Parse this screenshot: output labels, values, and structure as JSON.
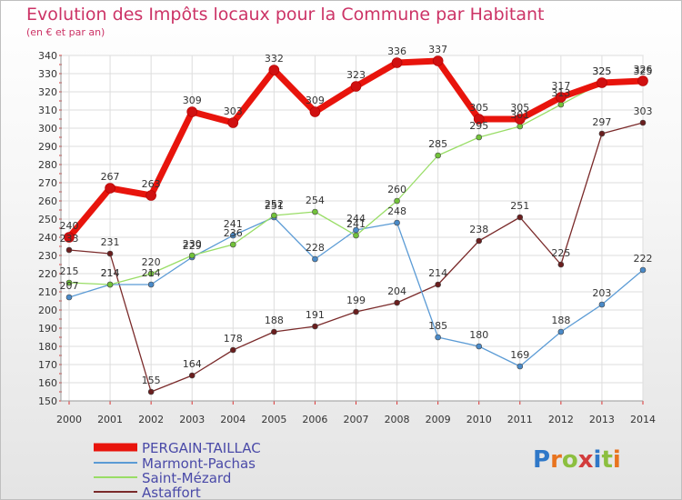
{
  "header": {
    "title": "Evolution des Impôts locaux pour la Commune par Habitant",
    "subtitle": "(en € et par an)"
  },
  "logo": {
    "text": "Proxiti",
    "colors": [
      "#2f78c8",
      "#e8731e",
      "#8cbf3f",
      "#d23c3c",
      "#2f78c8",
      "#8cbf3f",
      "#e8731e"
    ]
  },
  "chart_data": {
    "type": "line",
    "x": [
      2000,
      2001,
      2002,
      2003,
      2004,
      2005,
      2006,
      2007,
      2008,
      2009,
      2010,
      2011,
      2012,
      2013,
      2014
    ],
    "ylim": [
      150,
      340
    ],
    "yticks": [
      150,
      160,
      170,
      180,
      190,
      200,
      210,
      220,
      230,
      240,
      250,
      260,
      270,
      280,
      290,
      300,
      310,
      320,
      330,
      340
    ],
    "grid": true,
    "legend_position": "bottom-left",
    "series": [
      {
        "name": "PERGAIN-TAILLAC",
        "color": "#e8140c",
        "marker": "#d01010",
        "width": 7,
        "values": [
          240,
          267,
          263,
          309,
          303,
          332,
          309,
          323,
          336,
          337,
          305,
          305,
          317,
          325,
          326
        ],
        "labels": [
          "240",
          "267",
          "263",
          "309",
          "303",
          "332",
          "309",
          "323",
          "336",
          "337",
          "305",
          "305",
          "317",
          "325",
          "326"
        ]
      },
      {
        "name": "Marmont-Pachas",
        "color": "#5b9bd5",
        "marker": "#4a8ac8",
        "width": 1.3,
        "values": [
          207,
          214,
          214,
          229,
          241,
          251,
          228,
          244,
          248,
          185,
          180,
          169,
          188,
          203,
          222
        ],
        "labels": [
          "207",
          "214",
          "214",
          "229",
          "241",
          "251",
          "228",
          "244",
          "248",
          "185",
          "180",
          "169",
          "188",
          "203",
          "222"
        ]
      },
      {
        "name": "Saint-Mézard",
        "color": "#99dd66",
        "marker": "#72c23a",
        "width": 1.3,
        "values": [
          215,
          214,
          220,
          230,
          236,
          252,
          254,
          241,
          260,
          285,
          295,
          301,
          313,
          325,
          325
        ],
        "labels": [
          "215",
          "214",
          "220",
          "230",
          "236",
          "252",
          "254",
          "241",
          "260",
          "285",
          "295",
          "301",
          "313",
          "325",
          "325"
        ]
      },
      {
        "name": "Astaffort",
        "color": "#7a2a2a",
        "marker": "#6a1e1e",
        "width": 1.3,
        "values": [
          233,
          231,
          155,
          164,
          178,
          188,
          191,
          199,
          204,
          214,
          238,
          251,
          225,
          297,
          303
        ],
        "labels": [
          "233",
          "231",
          "155",
          "164",
          "178",
          "188",
          "191",
          "199",
          "204",
          "214",
          "238",
          "251",
          "225",
          "297",
          "303"
        ]
      }
    ]
  }
}
